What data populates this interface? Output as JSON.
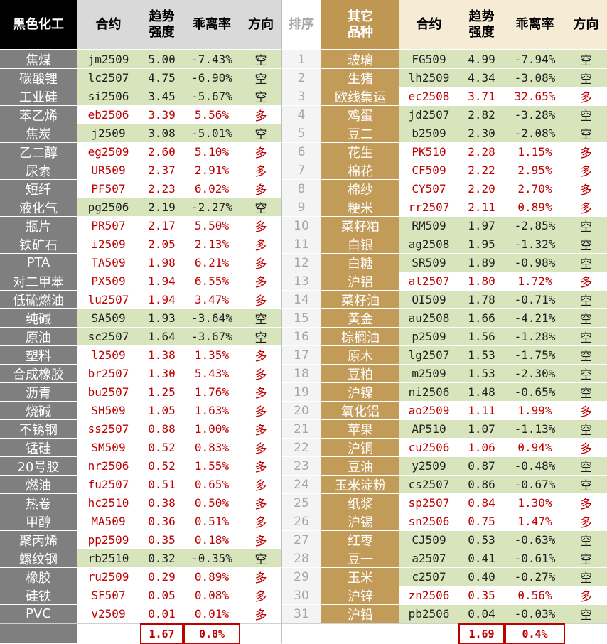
{
  "header": {
    "left": [
      "黑色化工",
      "合约",
      "趋势强度",
      "乖离率",
      "方向"
    ],
    "rank": "排序",
    "right": [
      "其它品种",
      "合约",
      "趋势强度",
      "乖离率",
      "方向"
    ]
  },
  "ranks": [
    1,
    2,
    3,
    4,
    5,
    6,
    7,
    8,
    9,
    10,
    11,
    12,
    13,
    14,
    15,
    16,
    17,
    18,
    19,
    20,
    21,
    22,
    23,
    24,
    25,
    26,
    27,
    28,
    29,
    30,
    31
  ],
  "left_rows": [
    [
      "焦煤",
      "jm2509",
      "5.00",
      "-7.43%",
      "空"
    ],
    [
      "碳酸锂",
      "lc2507",
      "4.75",
      "-6.90%",
      "空"
    ],
    [
      "工业硅",
      "si2506",
      "3.45",
      "-5.67%",
      "空"
    ],
    [
      "苯乙烯",
      "eb2506",
      "3.39",
      "5.56%",
      "多"
    ],
    [
      "焦炭",
      "j2509",
      "3.08",
      "-5.01%",
      "空"
    ],
    [
      "乙二醇",
      "eg2509",
      "2.60",
      "5.10%",
      "多"
    ],
    [
      "尿素",
      "UR509",
      "2.37",
      "2.91%",
      "多"
    ],
    [
      "短纤",
      "PF507",
      "2.23",
      "6.02%",
      "多"
    ],
    [
      "液化气",
      "pg2506",
      "2.19",
      "-2.27%",
      "空"
    ],
    [
      "瓶片",
      "PR507",
      "2.17",
      "5.50%",
      "多"
    ],
    [
      "铁矿石",
      "i2509",
      "2.05",
      "2.13%",
      "多"
    ],
    [
      "PTA",
      "TA509",
      "1.98",
      "6.21%",
      "多"
    ],
    [
      "对二甲苯",
      "PX509",
      "1.94",
      "6.55%",
      "多"
    ],
    [
      "低硫燃油",
      "lu2507",
      "1.94",
      "3.47%",
      "多"
    ],
    [
      "纯碱",
      "SA509",
      "1.93",
      "-3.64%",
      "空"
    ],
    [
      "原油",
      "sc2507",
      "1.64",
      "-3.67%",
      "空"
    ],
    [
      "塑料",
      "l2509",
      "1.38",
      "1.35%",
      "多"
    ],
    [
      "合成橡胶",
      "br2507",
      "1.30",
      "5.43%",
      "多"
    ],
    [
      "沥青",
      "bu2507",
      "1.25",
      "1.76%",
      "多"
    ],
    [
      "烧碱",
      "SH509",
      "1.05",
      "1.63%",
      "多"
    ],
    [
      "不锈钢",
      "ss2507",
      "0.88",
      "1.00%",
      "多"
    ],
    [
      "锰硅",
      "SM509",
      "0.52",
      "0.83%",
      "多"
    ],
    [
      "20号胶",
      "nr2506",
      "0.52",
      "1.55%",
      "多"
    ],
    [
      "燃油",
      "fu2507",
      "0.51",
      "0.65%",
      "多"
    ],
    [
      "热卷",
      "hc2510",
      "0.38",
      "0.50%",
      "多"
    ],
    [
      "甲醇",
      "MA509",
      "0.36",
      "0.51%",
      "多"
    ],
    [
      "聚丙烯",
      "pp2509",
      "0.35",
      "0.18%",
      "多"
    ],
    [
      "螺纹钢",
      "rb2510",
      "0.32",
      "-0.35%",
      "空"
    ],
    [
      "橡胶",
      "ru2509",
      "0.29",
      "0.89%",
      "多"
    ],
    [
      "硅铁",
      "SF507",
      "0.05",
      "0.08%",
      "多"
    ],
    [
      "PVC",
      "v2509",
      "0.01",
      "0.01%",
      "多"
    ]
  ],
  "right_rows": [
    [
      "玻璃",
      "FG509",
      "4.99",
      "-7.94%",
      "空"
    ],
    [
      "生猪",
      "lh2509",
      "4.34",
      "-3.08%",
      "空"
    ],
    [
      "欧线集运",
      "ec2508",
      "3.71",
      "32.65%",
      "多"
    ],
    [
      "鸡蛋",
      "jd2507",
      "2.82",
      "-3.28%",
      "空"
    ],
    [
      "豆二",
      "b2509",
      "2.30",
      "-2.08%",
      "空"
    ],
    [
      "花生",
      "PK510",
      "2.28",
      "1.15%",
      "多"
    ],
    [
      "棉花",
      "CF509",
      "2.22",
      "2.95%",
      "多"
    ],
    [
      "棉纱",
      "CY507",
      "2.20",
      "2.70%",
      "多"
    ],
    [
      "粳米",
      "rr2507",
      "2.11",
      "0.89%",
      "多"
    ],
    [
      "菜籽粕",
      "RM509",
      "1.97",
      "-2.85%",
      "空"
    ],
    [
      "白银",
      "ag2508",
      "1.95",
      "-1.32%",
      "空"
    ],
    [
      "白糖",
      "SR509",
      "1.89",
      "-0.98%",
      "空"
    ],
    [
      "沪铝",
      "al2507",
      "1.80",
      "1.72%",
      "多"
    ],
    [
      "菜籽油",
      "OI509",
      "1.78",
      "-0.71%",
      "空"
    ],
    [
      "黄金",
      "au2508",
      "1.66",
      "-4.21%",
      "空"
    ],
    [
      "棕榈油",
      "p2509",
      "1.56",
      "-1.28%",
      "空"
    ],
    [
      "原木",
      "lg2507",
      "1.53",
      "-1.75%",
      "空"
    ],
    [
      "豆粕",
      "m2509",
      "1.53",
      "-2.30%",
      "空"
    ],
    [
      "沪镍",
      "ni2506",
      "1.48",
      "-0.65%",
      "空"
    ],
    [
      "氧化铝",
      "ao2509",
      "1.11",
      "1.99%",
      "多"
    ],
    [
      "苹果",
      "AP510",
      "1.07",
      "-1.13%",
      "空"
    ],
    [
      "沪铜",
      "cu2506",
      "1.06",
      "0.94%",
      "多"
    ],
    [
      "豆油",
      "y2509",
      "0.87",
      "-0.48%",
      "空"
    ],
    [
      "玉米淀粉",
      "cs2507",
      "0.86",
      "-0.67%",
      "空"
    ],
    [
      "纸浆",
      "sp2507",
      "0.84",
      "1.30%",
      "多"
    ],
    [
      "沪锡",
      "sn2506",
      "0.75",
      "1.47%",
      "多"
    ],
    [
      "红枣",
      "CJ509",
      "0.53",
      "-0.63%",
      "空"
    ],
    [
      "豆一",
      "a2507",
      "0.41",
      "-0.61%",
      "空"
    ],
    [
      "玉米",
      "c2507",
      "0.40",
      "-0.27%",
      "空"
    ],
    [
      "沪锌",
      "zn2506",
      "0.35",
      "0.56%",
      "多"
    ],
    [
      "沪铅",
      "pb2506",
      "0.04",
      "-0.03%",
      "空"
    ]
  ],
  "footer": {
    "left": [
      "1.67",
      "0.8%"
    ],
    "right": [
      "1.69",
      "0.4%"
    ]
  },
  "styles": {
    "空": {
      "bg": "#d8e4bc",
      "color": "#1f1f1f"
    },
    "多": {
      "bg": "#ffffff",
      "color": "#c00000"
    }
  }
}
